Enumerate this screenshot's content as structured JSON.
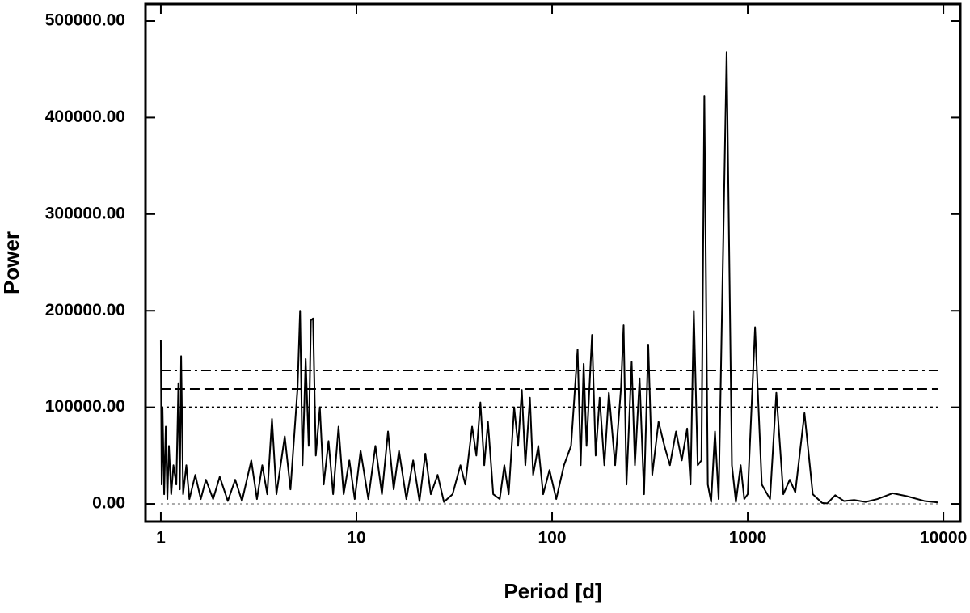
{
  "chart_data": {
    "type": "line",
    "xlabel": "Period [d]",
    "ylabel": "Power",
    "xscale": "log",
    "xlim": [
      0.835,
      12200
    ],
    "ylim": [
      -18400,
      517600
    ],
    "xticks": [
      1,
      10,
      100,
      1000,
      10000
    ],
    "yticks": [
      {
        "value": 0,
        "label": "0.00"
      },
      {
        "value": 100000,
        "label": "100000.00"
      },
      {
        "value": 200000,
        "label": "200000.00"
      },
      {
        "value": 300000,
        "label": "300000.00"
      },
      {
        "value": 400000,
        "label": "400000.00"
      },
      {
        "value": 500000,
        "label": "500000.00"
      }
    ],
    "reference_lines": [
      {
        "value": 0,
        "style": "dotted",
        "color": "#aaaaaa"
      },
      {
        "value": 100000,
        "style": "dotted",
        "color": "#000000"
      },
      {
        "value": 118900,
        "style": "dashed",
        "color": "#000000"
      },
      {
        "value": 138200,
        "style": "dashdot",
        "color": "#000000"
      }
    ],
    "x": [
      1.0,
      1.01,
      1.02,
      1.04,
      1.06,
      1.08,
      1.1,
      1.13,
      1.16,
      1.2,
      1.23,
      1.25,
      1.27,
      1.3,
      1.35,
      1.4,
      1.5,
      1.6,
      1.7,
      1.85,
      2.0,
      2.2,
      2.4,
      2.6,
      2.9,
      3.1,
      3.3,
      3.5,
      3.7,
      3.9,
      4.3,
      4.6,
      5.0,
      5.15,
      5.3,
      5.5,
      5.7,
      5.85,
      6.0,
      6.2,
      6.5,
      6.8,
      7.2,
      7.6,
      8.1,
      8.6,
      9.2,
      9.8,
      10.5,
      11.5,
      12.5,
      13.5,
      14.5,
      15.5,
      16.5,
      18,
      19.5,
      21,
      22.5,
      24,
      26,
      28,
      31,
      34,
      36,
      39,
      41,
      43,
      45,
      47,
      50,
      54,
      57,
      60,
      64,
      67,
      70,
      73,
      77,
      80,
      85,
      90,
      97,
      105,
      115,
      125,
      135,
      140,
      145,
      150,
      160,
      167,
      175,
      185,
      195,
      210,
      225,
      232,
      240,
      255,
      265,
      280,
      295,
      310,
      325,
      350,
      375,
      400,
      430,
      460,
      490,
      510,
      530,
      555,
      580,
      600,
      625,
      650,
      680,
      710,
      780,
      830,
      870,
      920,
      960,
      1000,
      1090,
      1180,
      1300,
      1400,
      1520,
      1640,
      1750,
      1950,
      2150,
      2400,
      2550,
      2800,
      3100,
      3500,
      4000,
      4600,
      5500,
      6500,
      8000,
      9400
    ],
    "series": [
      {
        "color": "#000000",
        "values": [
          170000,
          20000,
          100000,
          10000,
          80000,
          5000,
          60000,
          10000,
          40000,
          20000,
          125000,
          15000,
          153000,
          10000,
          40000,
          5000,
          30000,
          5000,
          25000,
          5000,
          28000,
          3000,
          25000,
          3000,
          45000,
          5000,
          40000,
          10000,
          88000,
          10000,
          70000,
          15000,
          120000,
          200000,
          40000,
          150000,
          60000,
          190000,
          192000,
          50000,
          100000,
          20000,
          65000,
          10000,
          80000,
          10000,
          45000,
          5000,
          55000,
          5000,
          60000,
          10000,
          75000,
          15000,
          55000,
          5000,
          45000,
          3000,
          52000,
          10000,
          30000,
          2000,
          10000,
          40000,
          20000,
          80000,
          50000,
          105000,
          40000,
          85000,
          10000,
          5000,
          40000,
          10000,
          100000,
          60000,
          118000,
          40000,
          110000,
          30000,
          60000,
          10000,
          35000,
          5000,
          40000,
          60000,
          160000,
          40000,
          145000,
          60000,
          175000,
          50000,
          110000,
          40000,
          115000,
          40000,
          120000,
          185000,
          20000,
          147000,
          40000,
          130000,
          10000,
          165000,
          30000,
          85000,
          60000,
          40000,
          75000,
          45000,
          78000,
          20000,
          200000,
          40000,
          45000,
          422000,
          20000,
          2000,
          75000,
          5000,
          468000,
          40000,
          2000,
          40000,
          5000,
          10000,
          183000,
          20000,
          5000,
          115000,
          10000,
          25000,
          12000,
          94000,
          10000,
          1000,
          500,
          9000,
          3000,
          4000,
          2000,
          5000,
          11000,
          8000,
          3000,
          1500
        ]
      }
    ]
  }
}
